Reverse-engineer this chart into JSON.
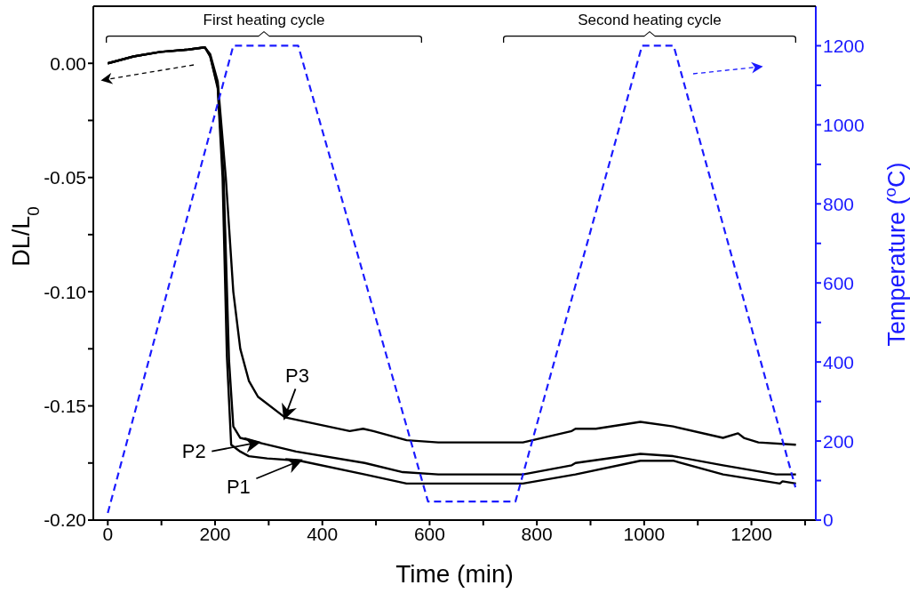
{
  "chart_data": {
    "type": "line",
    "xlabel": "Time (min)",
    "ylabel": "DL/L$_{0}$",
    "y2label": "Temperature ($^{o}$C)",
    "xlim": [
      -27,
      1320
    ],
    "xticks": [
      0,
      {
        "value": 100,
        "label": null
      },
      200,
      {
        "value": 300,
        "label": null
      },
      400,
      {
        "value": 500,
        "label": null
      },
      600,
      {
        "value": 700,
        "label": null
      },
      800,
      {
        "value": 900,
        "label": null
      },
      1000,
      {
        "value": 1100,
        "label": null
      },
      1200,
      {
        "value": 1300,
        "label": null
      }
    ],
    "ylim": [
      -0.2,
      0.025
    ],
    "yticks": [
      {
        "value": -0.2,
        "label": "-0.20"
      },
      {
        "value": -0.175,
        "label": null
      },
      {
        "value": -0.15,
        "label": "-0.15"
      },
      {
        "value": -0.125,
        "label": null
      },
      {
        "value": -0.1,
        "label": "-0.10"
      },
      {
        "value": -0.075,
        "label": null
      },
      {
        "value": -0.05,
        "label": "-0.05"
      },
      {
        "value": -0.025,
        "label": null
      },
      {
        "value": 0,
        "label": "0.00"
      }
    ],
    "y2lim": [
      0,
      1300
    ],
    "y2ticks": [
      0,
      {
        "value": 100,
        "label": null
      },
      200,
      {
        "value": 300,
        "label": null
      },
      400,
      {
        "value": 500,
        "label": null
      },
      600,
      {
        "value": 700,
        "label": null
      },
      800,
      {
        "value": 900,
        "label": null
      },
      1000,
      {
        "value": 1100,
        "label": null
      },
      1200
    ],
    "marker": "none",
    "grid": false,
    "series": [
      {
        "color": "#000000",
        "line_style": "solid",
        "x": [
          0,
          48,
          98,
          150,
          181,
          191,
          205,
          214,
          222,
          230,
          247,
          263,
          297,
          358,
          479,
          557,
          616,
          774,
          872,
          993,
          1054,
          1147,
          1253,
          1258,
          1283
        ],
        "values": [
          0.0,
          0.003,
          0.005,
          0.006,
          0.007,
          0.003,
          -0.011,
          -0.05,
          -0.128,
          -0.167,
          -0.17,
          -0.172,
          -0.173,
          -0.174,
          -0.18,
          -0.184,
          -0.184,
          -0.184,
          -0.18,
          -0.174,
          -0.174,
          -0.18,
          -0.184,
          -0.183,
          -0.184
        ]
      },
      {
        "color": "#000000",
        "line_style": "solid",
        "x": [
          0,
          48,
          98,
          150,
          181,
          191,
          205,
          216,
          226,
          234,
          247,
          280,
          351,
          479,
          550,
          616,
          774,
          865,
          872,
          993,
          1054,
          1147,
          1246,
          1283
        ],
        "values": [
          0.0,
          0.003,
          0.005,
          0.006,
          0.007,
          0.003,
          -0.01,
          -0.05,
          -0.13,
          -0.159,
          -0.164,
          -0.166,
          -0.17,
          -0.175,
          -0.179,
          -0.18,
          -0.18,
          -0.176,
          -0.175,
          -0.171,
          -0.172,
          -0.176,
          -0.18,
          -0.18
        ]
      },
      {
        "color": "#000000",
        "line_style": "solid",
        "x": [
          0,
          48,
          98,
          150,
          181,
          191,
          205,
          220,
          234,
          247,
          263,
          280,
          330,
          451,
          476,
          495,
          557,
          616,
          774,
          865,
          872,
          910,
          993,
          1054,
          1147,
          1175,
          1186,
          1213,
          1283
        ],
        "values": [
          0.0,
          0.003,
          0.005,
          0.006,
          0.007,
          0.004,
          -0.008,
          -0.05,
          -0.1,
          -0.125,
          -0.139,
          -0.146,
          -0.155,
          -0.161,
          -0.16,
          -0.161,
          -0.165,
          -0.166,
          -0.166,
          -0.161,
          -0.16,
          -0.16,
          -0.157,
          -0.159,
          -0.164,
          -0.162,
          -0.164,
          -0.166,
          -0.167
        ]
      },
      {
        "color": "#1a1aff",
        "axis": "y2",
        "line_style": "dashed",
        "x": [
          0,
          234,
          355,
          597,
          760,
          996,
          1055,
          1282
        ],
        "values": [
          18,
          1200,
          1200,
          47,
          47,
          1200,
          1200,
          83
        ]
      }
    ],
    "annotations": [
      "First heating cycle",
      "Second heating cycle",
      {
        "text": "P3",
        "x": 330,
        "y": -0.155
      },
      {
        "text": "P2",
        "x": 280,
        "y": -0.166
      },
      {
        "text": "P1",
        "x": 358,
        "y": -0.174
      }
    ]
  }
}
